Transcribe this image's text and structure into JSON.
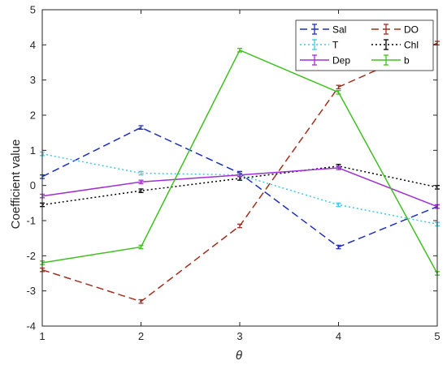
{
  "chart_data": {
    "type": "line",
    "title": "",
    "xlabel": "θ",
    "ylabel": "Coefficient value",
    "x": [
      1,
      2,
      3,
      4,
      5
    ],
    "xlim": [
      1,
      5
    ],
    "ylim": [
      -4,
      5
    ],
    "xticks": [
      "1",
      "2",
      "3",
      "4",
      "5"
    ],
    "yticks": [
      "-4",
      "-3",
      "-2",
      "-1",
      "0",
      "1",
      "2",
      "3",
      "4",
      "5"
    ],
    "grid": false,
    "legend_placement": "top-right",
    "legend_columns": 2,
    "series": [
      {
        "name": "Sal",
        "values": [
          0.25,
          1.65,
          0.35,
          -1.75,
          -0.6
        ],
        "error": [
          0.05,
          0.05,
          0.05,
          0.05,
          0.05
        ],
        "color": "#1f2fbf",
        "dash": "dashed"
      },
      {
        "name": "DO",
        "values": [
          -2.4,
          -3.3,
          -1.15,
          2.8,
          4.05
        ],
        "error": [
          0.05,
          0.05,
          0.05,
          0.05,
          0.05
        ],
        "color": "#a03020",
        "dash": "dashed"
      },
      {
        "name": "T",
        "values": [
          0.9,
          0.35,
          0.3,
          -0.55,
          -1.1
        ],
        "error": [
          0.05,
          0.05,
          0.05,
          0.05,
          0.05
        ],
        "color": "#40c8e0",
        "dash": "dotted"
      },
      {
        "name": "Chl",
        "values": [
          -0.55,
          -0.15,
          0.2,
          0.55,
          -0.05
        ],
        "error": [
          0.05,
          0.05,
          0.05,
          0.05,
          0.05
        ],
        "color": "#000000",
        "dash": "dotted"
      },
      {
        "name": "Dep",
        "values": [
          -0.3,
          0.1,
          0.3,
          0.5,
          -0.6
        ],
        "error": [
          0.05,
          0.05,
          0.05,
          0.05,
          0.05
        ],
        "color": "#a030d0",
        "dash": "solid"
      },
      {
        "name": "b",
        "values": [
          -2.2,
          -1.75,
          3.85,
          2.65,
          -2.5
        ],
        "error": [
          0.05,
          0.05,
          0.05,
          0.05,
          0.05
        ],
        "color": "#40c020",
        "dash": "solid"
      }
    ]
  }
}
